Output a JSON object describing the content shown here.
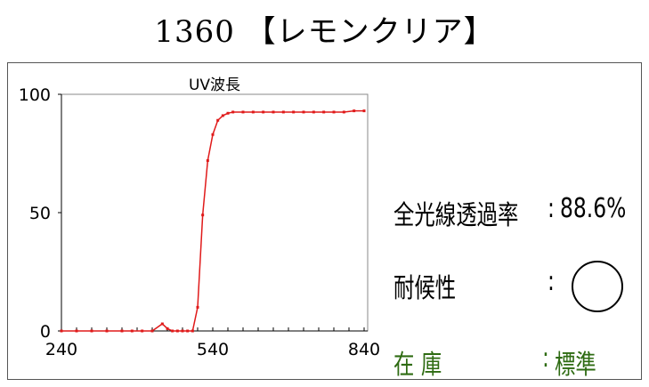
{
  "title": "1360 【レモンクリア】",
  "colors": {
    "series": "#e01a1a",
    "stock": "#2e6b12",
    "grid_tick": "#000000"
  },
  "stats": {
    "transmittance_label": "全光線透過率",
    "transmittance_value": "88.6%",
    "durability_label": "耐候性",
    "durability_icon": "circle-mark-icon",
    "stock_label": "在 庫",
    "stock_value": "標準",
    "colon": ":"
  },
  "chart_data": {
    "type": "line",
    "title": "UV波長",
    "xlabel": "",
    "ylabel": "",
    "xlim": [
      240,
      840
    ],
    "ylim": [
      0,
      100
    ],
    "xticks": [
      240,
      540,
      840
    ],
    "yticks": [
      0,
      50,
      100
    ],
    "grid": false,
    "series": [
      {
        "x": [
          240,
          270,
          300,
          330,
          360,
          380,
          400,
          420,
          440,
          450,
          460,
          470,
          480,
          490,
          500,
          510,
          520,
          530,
          540,
          550,
          560,
          570,
          580,
          600,
          620,
          640,
          660,
          680,
          700,
          720,
          740,
          760,
          780,
          800,
          820,
          840
        ],
        "y": [
          0,
          0,
          0,
          0,
          0,
          0,
          0,
          0,
          3,
          1,
          0,
          0,
          0,
          0,
          0,
          10,
          49,
          72,
          83,
          89,
          91,
          92,
          92.5,
          92.5,
          92.5,
          92.5,
          92.5,
          92.5,
          92.5,
          92.5,
          92.5,
          92.5,
          92.5,
          92.5,
          93,
          93
        ]
      }
    ]
  }
}
